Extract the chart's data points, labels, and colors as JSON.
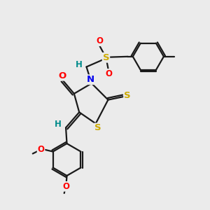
{
  "bg_color": "#ebebeb",
  "bond_color": "#1a1a1a",
  "bond_width": 1.6,
  "atom_colors": {
    "N": "#0000ee",
    "S": "#ccaa00",
    "O": "#ff0000",
    "H": "#008b8b",
    "C": "#1a1a1a"
  },
  "font_size": 8.5
}
